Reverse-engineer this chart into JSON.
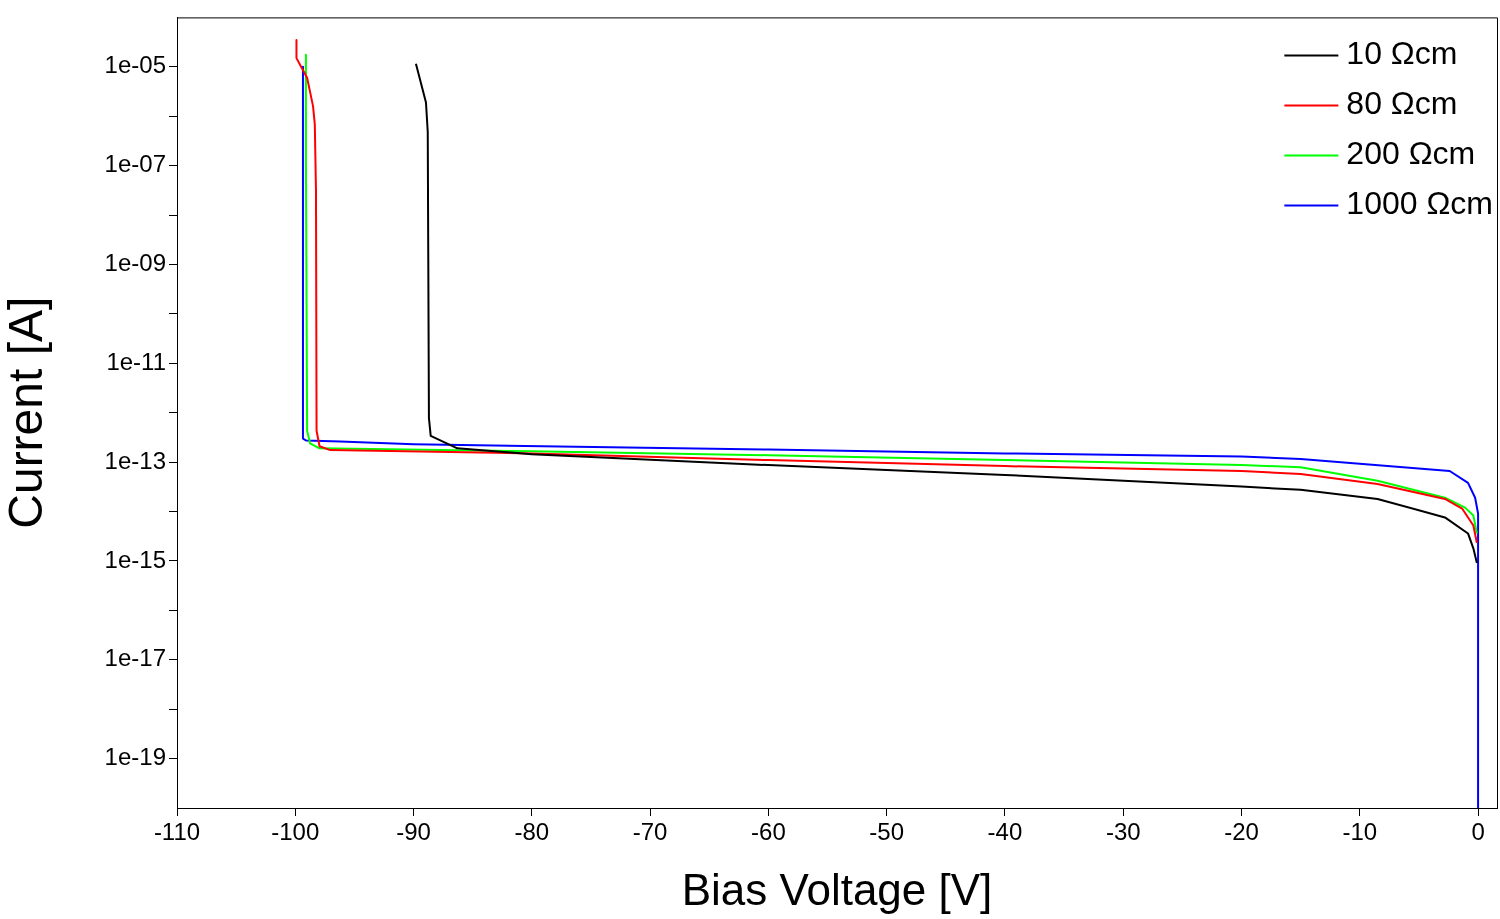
{
  "chart_data": {
    "type": "line",
    "xlabel": "Bias Voltage [V]",
    "ylabel": "Current [A]",
    "log": "y",
    "grid": false,
    "legend": "top right",
    "marker": "none",
    "line_style": "solid",
    "xlim": [
      -110,
      1.6
    ],
    "xticks": [
      -110,
      -100,
      -90,
      -80,
      -70,
      -60,
      -50,
      -40,
      -30,
      -20,
      -10,
      0
    ],
    "ylim": [
      1e-20,
      0.0001
    ],
    "yticks": [
      {
        "value": 1e-19,
        "label": "1e-19"
      },
      {
        "value": 1e-18,
        "label": null
      },
      {
        "value": 1e-17,
        "label": "1e-17"
      },
      {
        "value": 1e-16,
        "label": null
      },
      {
        "value": 1e-15,
        "label": "1e-15"
      },
      {
        "value": 1e-14,
        "label": null
      },
      {
        "value": 1e-13,
        "label": "1e-13"
      },
      {
        "value": 1e-12,
        "label": null
      },
      {
        "value": 1e-11,
        "label": "1e-11"
      },
      {
        "value": 1e-10,
        "label": null
      },
      {
        "value": 1e-09,
        "label": "1e-09"
      },
      {
        "value": 1e-08,
        "label": null
      },
      {
        "value": 1e-07,
        "label": "1e-07"
      },
      {
        "value": 1e-06,
        "label": null
      },
      {
        "value": 1e-05,
        "label": "1e-05"
      }
    ],
    "series": [
      {
        "name": "10 Ωcm",
        "color": "#000000",
        "x": [
          -89.8,
          -88.95,
          -88.8,
          -88.7,
          -88.55,
          -86.3,
          -80,
          -60,
          -40,
          -20,
          -15,
          -8.5,
          -2.8,
          -0.85,
          -0.4,
          -0.1
        ],
        "values": [
          1.15e-05,
          1.9e-06,
          4.8e-07,
          7.8e-13,
          3.4e-13,
          1.9e-13,
          1.45e-13,
          8.7e-14,
          5.5e-14,
          3.2e-14,
          2.75e-14,
          1.8e-14,
          7.6e-15,
          3.6e-15,
          1.8e-15,
          9.1e-16
        ]
      },
      {
        "name": "80 Ωcm",
        "color": "#ff0000",
        "x": [
          -99.9,
          -99.9,
          -99.45,
          -99.0,
          -98.5,
          -98.35,
          -98.25,
          -98.2,
          -97.95,
          -97.05,
          -80,
          -60,
          -40,
          -20,
          -15,
          -8.5,
          -2.8,
          -1.35,
          -0.4,
          -0.1
        ],
        "values": [
          3.5e-05,
          1.5e-05,
          9.5e-06,
          6e-06,
          1.6e-06,
          6.9e-07,
          3.2e-08,
          4.3e-13,
          2.1e-13,
          1.75e-13,
          1.5e-13,
          1.1e-13,
          8.3e-14,
          6.6e-14,
          5.75e-14,
          3.6e-14,
          1.8e-14,
          1.15e-14,
          5.2e-15,
          2.3e-15
        ]
      },
      {
        "name": "200 Ωcm",
        "color": "#00ff00",
        "x": [
          -99.1,
          -99.1,
          -99.0,
          -98.75,
          -97.95,
          -80,
          -60,
          -40,
          -20,
          -15,
          -8.5,
          -2.8,
          -1.1,
          -0.4,
          -0.1
        ],
        "values": [
          1.75e-05,
          1.5e-07,
          4.3e-13,
          2.4e-13,
          1.9e-13,
          1.66e-13,
          1.38e-13,
          1.1e-13,
          8.7e-14,
          7.9e-14,
          4.2e-14,
          1.9e-14,
          1.2e-14,
          8.3e-15,
          3.6e-15
        ]
      },
      {
        "name": "1000 Ωcm",
        "color": "#0000ff",
        "x": [
          -99.35,
          -99.35,
          -99.1,
          -96.2,
          -90,
          -60,
          -40,
          -20,
          -15,
          -2.4,
          -0.85,
          -0.25,
          0,
          0
        ],
        "values": [
          1e-05,
          3e-13,
          2.75e-13,
          2.6e-13,
          2.3e-13,
          1.8e-13,
          1.5e-13,
          1.3e-13,
          1.15e-13,
          6.6e-14,
          3.8e-14,
          1.9e-14,
          9.1e-15,
          1e-20
        ]
      }
    ]
  }
}
